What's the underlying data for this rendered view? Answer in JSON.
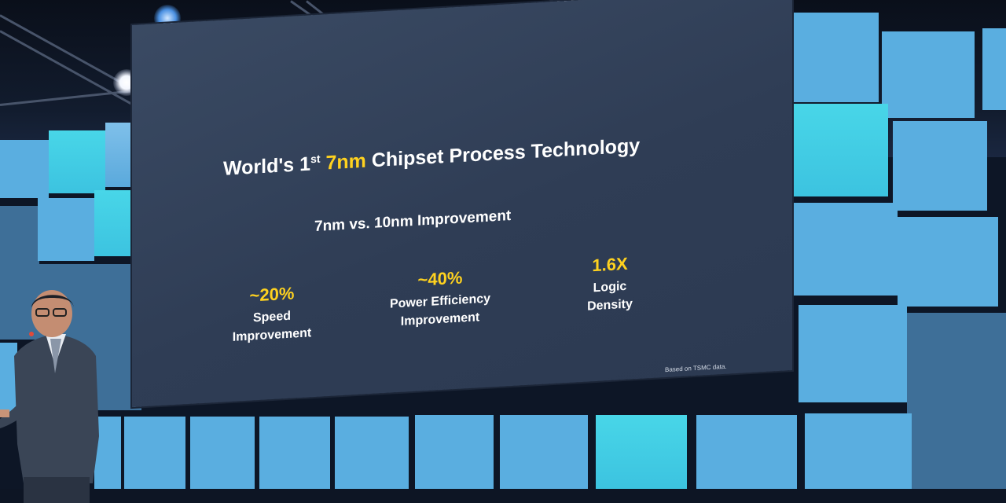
{
  "slide": {
    "title_prefix": "World's 1",
    "title_superscript": "st",
    "title_highlight": "7nm",
    "title_suffix": "Chipset Process Technology",
    "subtitle": "7nm vs. 10nm Improvement",
    "metrics": [
      {
        "value": "~20%",
        "label_line1": "Speed",
        "label_line2": "Improvement"
      },
      {
        "value": "~40%",
        "label_line1": "Power Efficiency",
        "label_line2": "Improvement"
      },
      {
        "value": "1.6X",
        "label_line1": "Logic",
        "label_line2": "Density"
      }
    ],
    "footnote": "Based on TSMC data."
  },
  "colors": {
    "accent": "#ffd21f",
    "slide_background": "#2f3d55",
    "stage_tile_cyan": "#48d6e8",
    "stage_tile_blue": "#5aaee0"
  }
}
